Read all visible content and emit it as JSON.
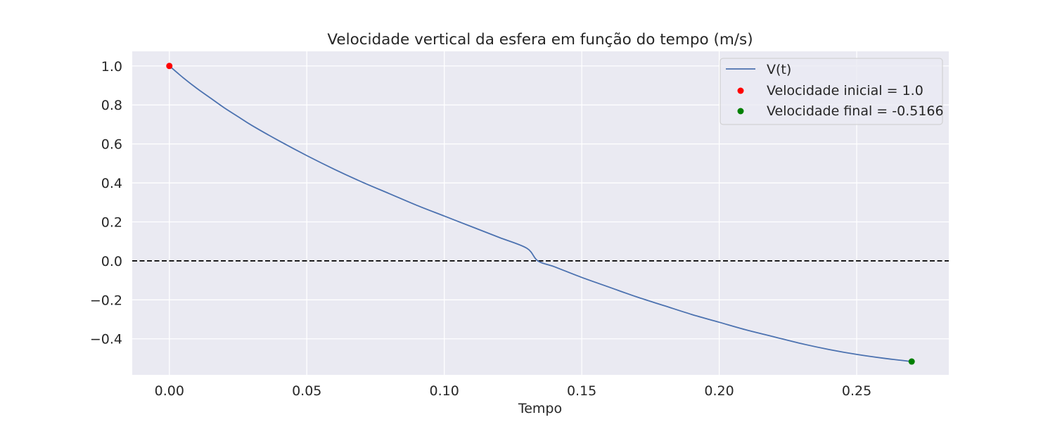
{
  "chart_data": {
    "type": "line",
    "title": "Velocidade vertical da esfera em função do tempo (m/s)",
    "xlabel": "Tempo",
    "ylabel": "",
    "xlim": [
      -0.0135,
      0.2835
    ],
    "ylim": [
      -0.585,
      1.075
    ],
    "x_ticks": [
      "0.00",
      "0.05",
      "0.10",
      "0.15",
      "0.20",
      "0.25"
    ],
    "y_ticks": [
      "1.0",
      "0.8",
      "0.6",
      "0.4",
      "0.2",
      "0.0",
      "−0.2",
      "−0.4"
    ],
    "grid": true,
    "legend_position": "top-right",
    "series": [
      {
        "name": "V(t)",
        "color": "#4c72b0",
        "x": [
          0,
          0.005,
          0.01,
          0.015,
          0.02,
          0.025,
          0.03,
          0.04,
          0.05,
          0.06,
          0.07,
          0.08,
          0.09,
          0.1,
          0.11,
          0.12,
          0.13,
          0.134,
          0.14,
          0.15,
          0.16,
          0.17,
          0.18,
          0.19,
          0.2,
          0.21,
          0.22,
          0.23,
          0.24,
          0.25,
          0.26,
          0.27
        ],
        "y": [
          1.0,
          0.94,
          0.885,
          0.835,
          0.785,
          0.74,
          0.695,
          0.615,
          0.54,
          0.47,
          0.405,
          0.345,
          0.285,
          0.23,
          0.175,
          0.12,
          0.065,
          0.0,
          -0.03,
          -0.085,
          -0.135,
          -0.185,
          -0.23,
          -0.275,
          -0.315,
          -0.355,
          -0.39,
          -0.425,
          -0.455,
          -0.48,
          -0.5,
          -0.5166
        ]
      }
    ],
    "reference_line": {
      "y": 0,
      "style": "dashed",
      "color": "#000000"
    },
    "markers": [
      {
        "name": "Velocidade inicial = 1.0",
        "x": 0,
        "y": 1.0,
        "color": "#ff0000"
      },
      {
        "name": "Velocidade final = -0.5166",
        "x": 0.27,
        "y": -0.5166,
        "color": "#008000"
      }
    ]
  }
}
